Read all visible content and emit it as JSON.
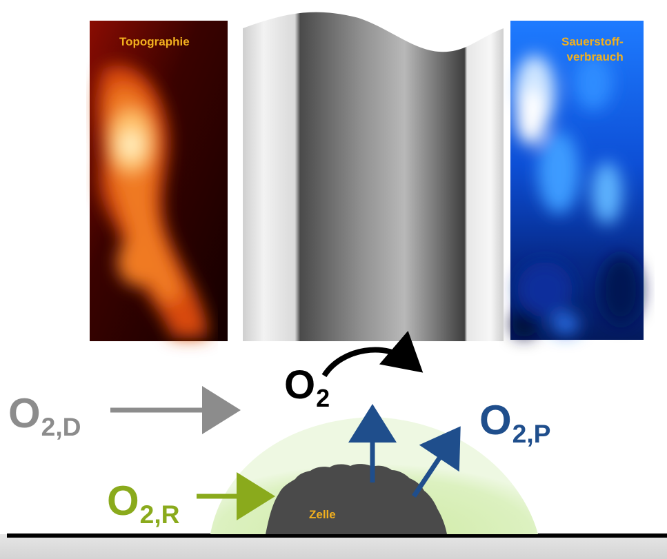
{
  "panels": {
    "topography_label": "Topographie",
    "oxygen_label_line1": "Sauerstoff-",
    "oxygen_label_line2": "verbrauch"
  },
  "labels": {
    "o2_main": "O",
    "o2_main_sub": "2",
    "o2_d": "O",
    "o2_d_sub": "2,D",
    "o2_p": "O",
    "o2_p_sub": "2,P",
    "o2_r": "O",
    "o2_r_sub": "2,R",
    "cell": "Zelle"
  },
  "colors": {
    "gray_label": "#8c8c8c",
    "blue_label": "#1f4e8c",
    "green_label": "#8aaa1c",
    "panel_text": "#f2b01e",
    "cell": "#4a4a4a",
    "halo": "#d6efb4"
  }
}
